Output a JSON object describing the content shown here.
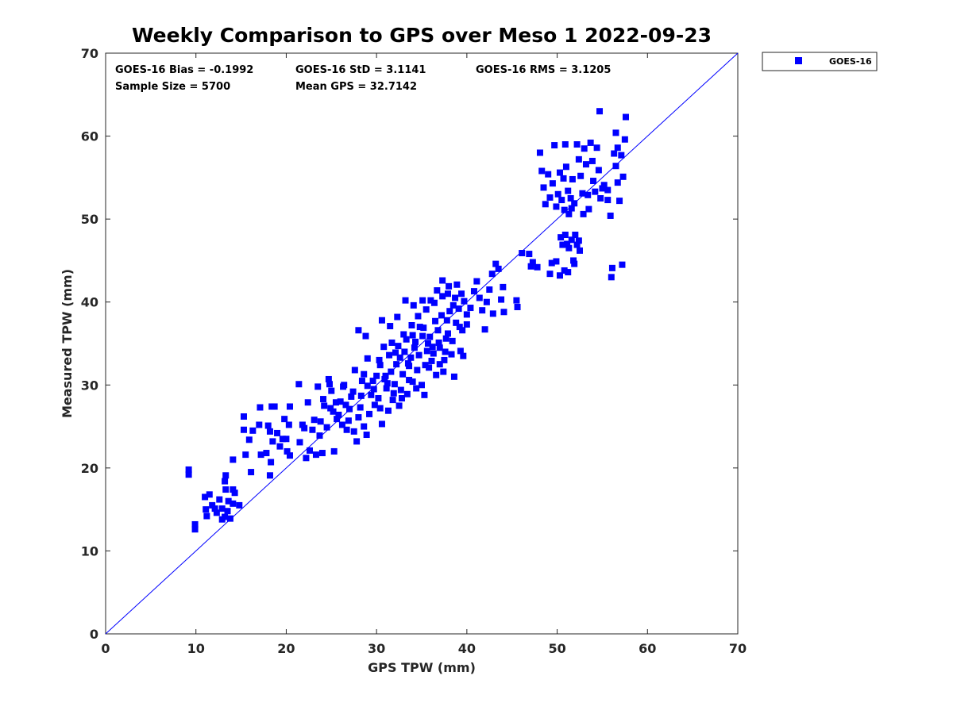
{
  "chart_data": {
    "type": "scatter",
    "title": "Weekly Comparison to GPS over Meso 1 2022-09-23",
    "xlabel": "GPS TPW (mm)",
    "ylabel": "Measured TPW (mm)",
    "xlim": [
      0,
      70
    ],
    "ylim": [
      0,
      70
    ],
    "xticks": [
      0,
      10,
      20,
      30,
      40,
      50,
      60,
      70
    ],
    "yticks": [
      0,
      10,
      20,
      30,
      40,
      50,
      60,
      70
    ],
    "grid": false,
    "legend": {
      "position": "outside-top-right",
      "entries": [
        "GOES-16"
      ]
    },
    "reference_line": {
      "name": "1:1 line",
      "from": [
        0,
        0
      ],
      "to": [
        70,
        70
      ],
      "color": "#0000ff"
    },
    "stats": {
      "bias": "GOES-16 Bias = -0.1992",
      "std": "GOES-16 StD = 3.1141",
      "rms": "GOES-16 RMS = 3.1205",
      "sample_size": "Sample Size = 5700",
      "mean_gps": "Mean GPS = 32.7142"
    },
    "series": [
      {
        "name": "GOES-16",
        "color": "#0000ff",
        "marker": "square",
        "points": [
          [
            9.2,
            19.8
          ],
          [
            9.2,
            19.2
          ],
          [
            9.9,
            13.2
          ],
          [
            9.9,
            12.6
          ],
          [
            11.0,
            16.5
          ],
          [
            11.1,
            15.0
          ],
          [
            11.2,
            14.2
          ],
          [
            11.5,
            16.8
          ],
          [
            11.8,
            15.5
          ],
          [
            12.1,
            15.1
          ],
          [
            12.3,
            14.6
          ],
          [
            12.6,
            16.2
          ],
          [
            12.9,
            15.1
          ],
          [
            13.2,
            14.1
          ],
          [
            13.5,
            14.8
          ],
          [
            13.2,
            18.4
          ],
          [
            13.3,
            17.4
          ],
          [
            13.6,
            16.0
          ],
          [
            14.1,
            15.7
          ],
          [
            14.1,
            17.4
          ],
          [
            14.3,
            17.0
          ],
          [
            14.8,
            15.5
          ],
          [
            13.8,
            13.9
          ],
          [
            12.9,
            13.8
          ],
          [
            13.3,
            19.1
          ],
          [
            14.1,
            21.0
          ],
          [
            15.3,
            26.2
          ],
          [
            15.3,
            24.6
          ],
          [
            15.5,
            21.6
          ],
          [
            15.9,
            23.4
          ],
          [
            16.1,
            19.5
          ],
          [
            16.3,
            24.5
          ],
          [
            17.0,
            25.2
          ],
          [
            17.1,
            27.3
          ],
          [
            17.2,
            21.6
          ],
          [
            17.8,
            21.8
          ],
          [
            18.2,
            19.1
          ],
          [
            18.3,
            20.7
          ],
          [
            18.5,
            23.2
          ],
          [
            18.4,
            27.4
          ],
          [
            18.7,
            27.4
          ],
          [
            19.0,
            24.2
          ],
          [
            19.3,
            22.6
          ],
          [
            19.6,
            23.5
          ],
          [
            19.8,
            25.9
          ],
          [
            20.0,
            23.5
          ],
          [
            20.1,
            22.0
          ],
          [
            20.3,
            25.2
          ],
          [
            20.4,
            27.4
          ],
          [
            20.4,
            21.5
          ],
          [
            18.0,
            25.1
          ],
          [
            18.2,
            24.4
          ],
          [
            21.4,
            30.1
          ],
          [
            21.5,
            23.1
          ],
          [
            21.8,
            25.2
          ],
          [
            22.0,
            24.8
          ],
          [
            22.2,
            21.2
          ],
          [
            22.4,
            27.9
          ],
          [
            22.6,
            22.1
          ],
          [
            22.9,
            24.6
          ],
          [
            23.1,
            25.8
          ],
          [
            23.3,
            21.6
          ],
          [
            23.5,
            29.8
          ],
          [
            23.7,
            23.9
          ],
          [
            23.8,
            25.6
          ],
          [
            24.0,
            21.8
          ],
          [
            24.2,
            27.5
          ],
          [
            24.5,
            24.9
          ],
          [
            24.7,
            30.7
          ],
          [
            24.8,
            30.1
          ],
          [
            25.0,
            29.3
          ],
          [
            25.3,
            22.0
          ],
          [
            25.6,
            25.9
          ],
          [
            25.8,
            26.4
          ],
          [
            26.0,
            28.0
          ],
          [
            26.2,
            25.2
          ],
          [
            26.3,
            29.8
          ],
          [
            26.7,
            24.6
          ],
          [
            27.0,
            27.1
          ],
          [
            27.2,
            28.6
          ],
          [
            27.5,
            24.4
          ],
          [
            27.8,
            23.2
          ],
          [
            28.0,
            26.1
          ],
          [
            28.2,
            27.3
          ],
          [
            28.4,
            30.5
          ],
          [
            28.6,
            25.0
          ],
          [
            28.9,
            24.0
          ],
          [
            29.2,
            26.5
          ],
          [
            29.4,
            28.8
          ],
          [
            29.7,
            29.5
          ],
          [
            30.0,
            31.1
          ],
          [
            30.2,
            28.4
          ],
          [
            30.4,
            27.2
          ],
          [
            30.6,
            25.3
          ],
          [
            30.9,
            30.7
          ],
          [
            31.1,
            29.6
          ],
          [
            31.3,
            26.9
          ],
          [
            31.6,
            31.6
          ],
          [
            31.8,
            28.2
          ],
          [
            32.0,
            30.1
          ],
          [
            32.2,
            32.5
          ],
          [
            32.5,
            27.5
          ],
          [
            32.7,
            29.4
          ],
          [
            32.9,
            31.3
          ],
          [
            33.1,
            34.0
          ],
          [
            33.4,
            28.9
          ],
          [
            33.6,
            32.3
          ],
          [
            33.8,
            33.3
          ],
          [
            34.0,
            30.4
          ],
          [
            34.3,
            35.2
          ],
          [
            34.5,
            31.8
          ],
          [
            34.7,
            33.6
          ],
          [
            35.0,
            30.0
          ],
          [
            35.2,
            36.9
          ],
          [
            35.4,
            32.4
          ],
          [
            35.6,
            34.1
          ],
          [
            35.9,
            35.8
          ],
          [
            36.1,
            32.9
          ],
          [
            36.3,
            33.8
          ],
          [
            36.6,
            31.2
          ],
          [
            36.8,
            36.6
          ],
          [
            37.0,
            34.5
          ],
          [
            37.2,
            38.4
          ],
          [
            37.5,
            33.0
          ],
          [
            37.7,
            35.6
          ],
          [
            37.9,
            36.2
          ],
          [
            38.1,
            38.9
          ],
          [
            38.4,
            35.3
          ],
          [
            38.6,
            31.0
          ],
          [
            38.8,
            37.5
          ],
          [
            39.1,
            39.2
          ],
          [
            39.3,
            34.1
          ],
          [
            39.5,
            36.6
          ],
          [
            39.7,
            40.1
          ],
          [
            40.0,
            38.5
          ],
          [
            25.2,
            26.8
          ],
          [
            26.6,
            27.6
          ],
          [
            27.4,
            29.2
          ],
          [
            28.6,
            31.3
          ],
          [
            29.0,
            33.2
          ],
          [
            29.6,
            30.5
          ],
          [
            30.4,
            32.4
          ],
          [
            31.0,
            31.1
          ],
          [
            31.4,
            33.6
          ],
          [
            31.9,
            29.0
          ],
          [
            32.4,
            34.7
          ],
          [
            32.8,
            28.4
          ],
          [
            33.3,
            35.5
          ],
          [
            33.6,
            30.6
          ],
          [
            34.0,
            36.0
          ],
          [
            34.4,
            29.6
          ],
          [
            34.8,
            37.0
          ],
          [
            35.3,
            28.8
          ],
          [
            35.7,
            35.0
          ],
          [
            36.2,
            34.6
          ],
          [
            36.5,
            37.7
          ],
          [
            37.0,
            32.5
          ],
          [
            37.4,
            31.6
          ],
          [
            37.8,
            37.8
          ],
          [
            38.3,
            33.7
          ],
          [
            38.7,
            40.5
          ],
          [
            39.2,
            37.0
          ],
          [
            39.6,
            33.5
          ],
          [
            24.1,
            28.3
          ],
          [
            24.9,
            27.2
          ],
          [
            25.5,
            27.9
          ],
          [
            26.4,
            30.0
          ],
          [
            26.9,
            25.7
          ],
          [
            27.6,
            31.8
          ],
          [
            28.3,
            28.7
          ],
          [
            29.0,
            29.9
          ],
          [
            29.8,
            27.6
          ],
          [
            30.3,
            33.0
          ],
          [
            30.8,
            34.6
          ],
          [
            31.2,
            30.2
          ],
          [
            31.7,
            35.1
          ],
          [
            32.1,
            33.9
          ],
          [
            32.6,
            33.3
          ],
          [
            33.0,
            36.1
          ],
          [
            33.5,
            32.6
          ],
          [
            33.9,
            37.2
          ],
          [
            34.2,
            34.5
          ],
          [
            34.6,
            38.3
          ],
          [
            35.1,
            35.9
          ],
          [
            35.5,
            39.1
          ],
          [
            35.8,
            32.1
          ],
          [
            36.4,
            39.9
          ],
          [
            36.9,
            35.1
          ],
          [
            37.3,
            40.7
          ],
          [
            37.6,
            34.0
          ],
          [
            38.0,
            41.9
          ],
          [
            28.0,
            36.6
          ],
          [
            28.8,
            35.9
          ],
          [
            30.6,
            37.8
          ],
          [
            31.5,
            37.1
          ],
          [
            32.3,
            38.2
          ],
          [
            33.2,
            40.2
          ],
          [
            34.1,
            39.6
          ],
          [
            35.1,
            40.2
          ],
          [
            36.0,
            40.2
          ],
          [
            36.7,
            41.4
          ],
          [
            37.3,
            42.6
          ],
          [
            37.9,
            41.0
          ],
          [
            38.5,
            39.6
          ],
          [
            38.9,
            42.1
          ],
          [
            39.4,
            41.0
          ],
          [
            40.0,
            37.3
          ],
          [
            40.4,
            39.3
          ],
          [
            40.8,
            41.3
          ],
          [
            41.1,
            42.5
          ],
          [
            41.4,
            40.5
          ],
          [
            41.7,
            39.0
          ],
          [
            42.0,
            36.7
          ],
          [
            42.2,
            40.0
          ],
          [
            42.5,
            41.5
          ],
          [
            42.8,
            43.4
          ],
          [
            42.9,
            38.6
          ],
          [
            43.2,
            44.6
          ],
          [
            43.5,
            44.0
          ],
          [
            43.8,
            40.3
          ],
          [
            44.0,
            41.8
          ],
          [
            44.1,
            38.8
          ],
          [
            45.5,
            40.2
          ],
          [
            45.6,
            39.4
          ],
          [
            46.1,
            45.9
          ],
          [
            46.9,
            45.8
          ],
          [
            47.1,
            44.3
          ],
          [
            47.3,
            44.8
          ],
          [
            47.8,
            44.2
          ],
          [
            49.2,
            43.4
          ],
          [
            49.4,
            44.7
          ],
          [
            48.1,
            58.0
          ],
          [
            48.3,
            55.8
          ],
          [
            48.5,
            53.8
          ],
          [
            48.7,
            51.8
          ],
          [
            49.0,
            55.4
          ],
          [
            49.2,
            52.6
          ],
          [
            49.5,
            54.3
          ],
          [
            49.7,
            58.9
          ],
          [
            49.9,
            51.5
          ],
          [
            50.1,
            53.0
          ],
          [
            50.3,
            55.6
          ],
          [
            50.5,
            52.3
          ],
          [
            50.7,
            54.9
          ],
          [
            50.8,
            51.1
          ],
          [
            51.0,
            56.3
          ],
          [
            51.2,
            53.4
          ],
          [
            51.3,
            50.6
          ],
          [
            51.5,
            52.5
          ],
          [
            51.7,
            54.8
          ],
          [
            51.9,
            51.9
          ],
          [
            50.4,
            47.8
          ],
          [
            50.6,
            46.9
          ],
          [
            50.9,
            48.1
          ],
          [
            51.1,
            47.0
          ],
          [
            51.3,
            46.5
          ],
          [
            51.6,
            47.5
          ],
          [
            51.8,
            45.0
          ],
          [
            52.0,
            48.1
          ],
          [
            52.2,
            46.9
          ],
          [
            52.4,
            47.4
          ],
          [
            52.5,
            46.2
          ],
          [
            51.2,
            43.6
          ],
          [
            50.8,
            43.8
          ],
          [
            50.3,
            43.2
          ],
          [
            49.9,
            44.9
          ],
          [
            51.9,
            44.6
          ],
          [
            50.9,
            59.0
          ],
          [
            51.6,
            51.3
          ],
          [
            52.2,
            59.0
          ],
          [
            52.4,
            57.2
          ],
          [
            52.6,
            55.2
          ],
          [
            52.8,
            53.1
          ],
          [
            53.0,
            58.5
          ],
          [
            53.2,
            56.6
          ],
          [
            53.4,
            52.9
          ],
          [
            53.7,
            59.2
          ],
          [
            53.9,
            57.0
          ],
          [
            54.0,
            54.6
          ],
          [
            54.2,
            53.3
          ],
          [
            54.4,
            58.6
          ],
          [
            54.6,
            55.9
          ],
          [
            54.8,
            52.5
          ],
          [
            55.0,
            53.7
          ],
          [
            55.2,
            54.1
          ],
          [
            55.6,
            52.3
          ],
          [
            55.9,
            50.4
          ],
          [
            56.3,
            57.9
          ],
          [
            56.5,
            56.4
          ],
          [
            56.7,
            54.4
          ],
          [
            56.9,
            52.2
          ],
          [
            57.1,
            57.7
          ],
          [
            57.3,
            55.1
          ],
          [
            57.5,
            59.6
          ],
          [
            57.6,
            62.3
          ],
          [
            56.5,
            60.4
          ],
          [
            54.7,
            63.0
          ],
          [
            53.5,
            51.2
          ],
          [
            52.9,
            50.6
          ],
          [
            56.1,
            44.1
          ],
          [
            56.0,
            43.0
          ],
          [
            57.2,
            44.5
          ],
          [
            56.7,
            58.6
          ],
          [
            55.6,
            53.5
          ]
        ]
      }
    ]
  }
}
